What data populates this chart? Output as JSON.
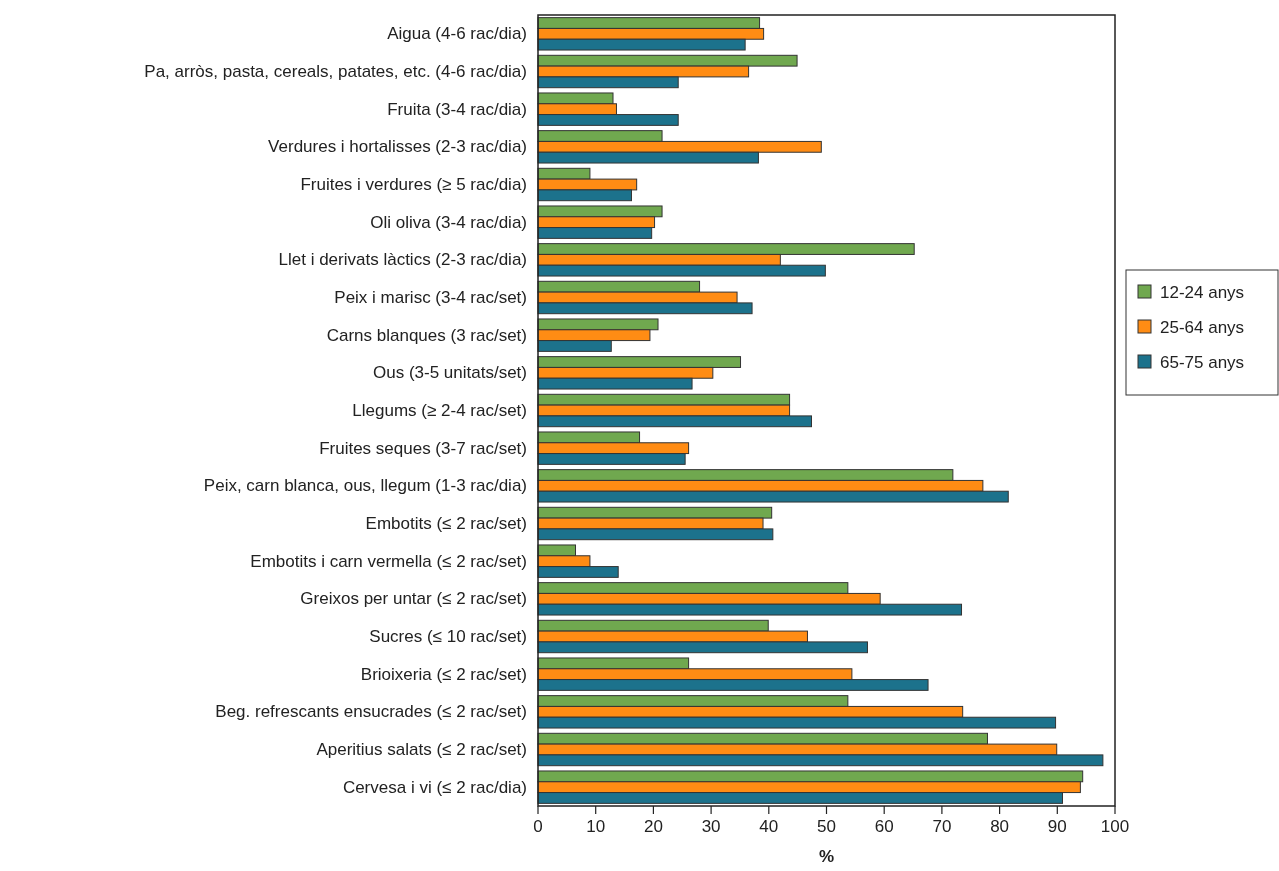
{
  "chart_data": {
    "type": "bar",
    "orientation": "horizontal",
    "xlabel": "%",
    "categories": [
      "Aigua (4-6 rac/dia)",
      "Pa, arròs, pasta, cereals, patates, etc. (4-6 rac/dia)",
      "Fruita (3-4 rac/dia)",
      "Verdures i hortalisses (2-3 rac/dia)",
      "Fruites i verdures (≥ 5 rac/dia)",
      "Oli oliva (3-4 rac/dia)",
      "Llet i derivats làctics (2-3 rac/dia)",
      "Peix i marisc (3-4 rac/set)",
      "Carns blanques (3 rac/set)",
      "Ous (3-5 unitats/set)",
      "Llegums (≥ 2-4 rac/set)",
      "Fruites seques (3-7 rac/set)",
      "Peix, carn blanca, ous, llegum (1-3 rac/dia)",
      "Embotits (≤ 2 rac/set)",
      "Embotits i carn vermella (≤ 2 rac/set)",
      "Greixos per untar (≤ 2 rac/set)",
      "Sucres (≤ 10 rac/set)",
      "Brioixeria (≤ 2 rac/set)",
      "Beg. refrescants ensucrades (≤ 2 rac/set)",
      "Aperitius salats (≤ 2 rac/set)",
      "Cervesa i vi (≤ 2 rac/dia)"
    ],
    "series": [
      {
        "name": "12-24 anys",
        "color": "#70a84f",
        "values": [
          38.4,
          44.9,
          13.0,
          21.5,
          9.0,
          21.5,
          65.2,
          28.0,
          20.8,
          35.1,
          43.6,
          17.6,
          71.9,
          40.5,
          6.5,
          53.7,
          39.9,
          26.1,
          53.7,
          77.9,
          94.4
        ]
      },
      {
        "name": "25-64 anys",
        "color": "#ff8c14",
        "values": [
          39.1,
          36.5,
          13.6,
          49.1,
          17.1,
          20.2,
          42.0,
          34.5,
          19.4,
          30.3,
          43.6,
          26.1,
          77.1,
          39.0,
          9.0,
          59.3,
          46.7,
          54.4,
          73.6,
          89.9,
          94.0
        ]
      },
      {
        "name": "65-75 anys",
        "color": "#1c728c",
        "values": [
          35.9,
          24.3,
          24.3,
          38.2,
          16.2,
          19.7,
          49.8,
          37.1,
          12.7,
          26.7,
          47.4,
          25.5,
          81.5,
          40.7,
          13.9,
          73.4,
          57.1,
          67.6,
          89.7,
          97.9,
          90.9
        ]
      }
    ],
    "xlim": [
      0,
      100
    ],
    "xticks": [
      0,
      10,
      20,
      30,
      40,
      50,
      60,
      70,
      80,
      90,
      100
    ],
    "legend": "right"
  }
}
